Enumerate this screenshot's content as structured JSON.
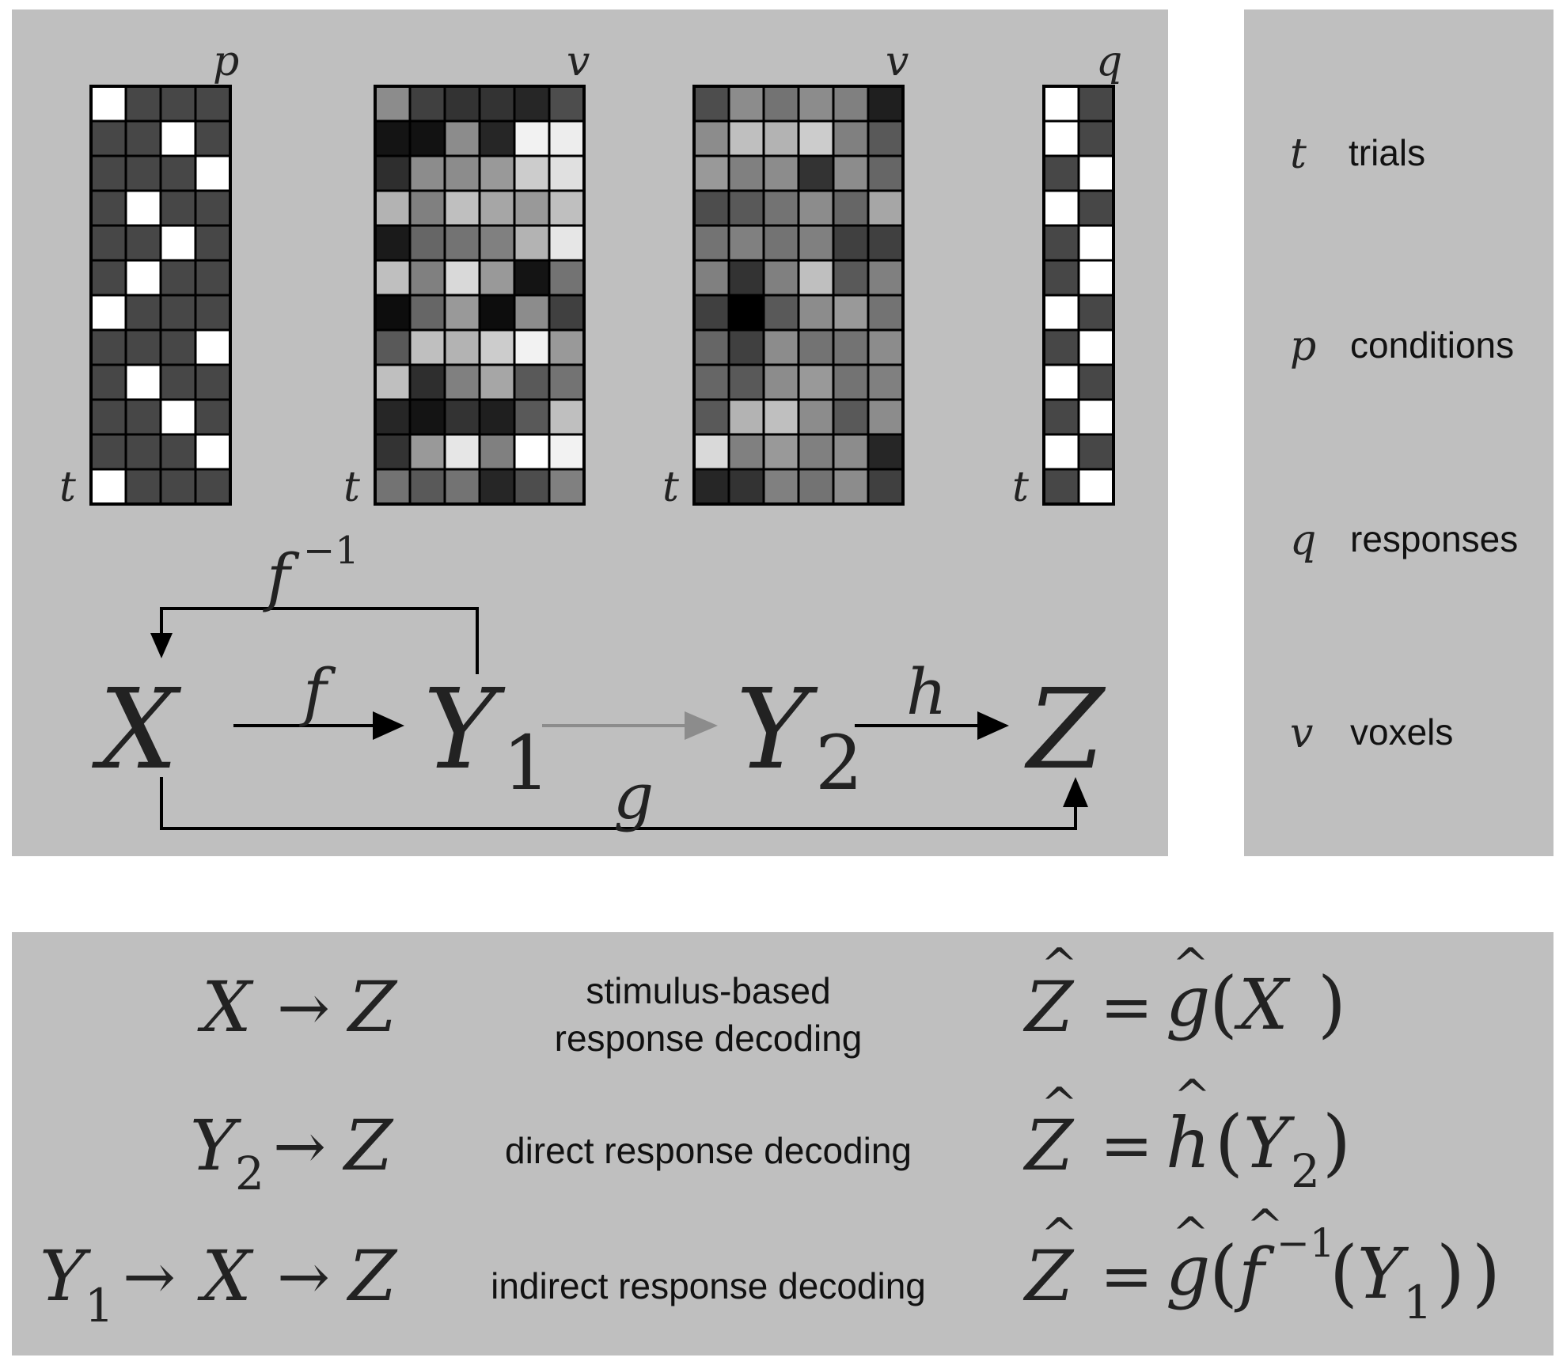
{
  "matrices": [
    {
      "id": "X",
      "dim_label": "p",
      "rows_label": "t",
      "cells": [
        [
          1,
          0.28,
          0.28,
          0.28
        ],
        [
          0.28,
          0.28,
          1,
          0.28
        ],
        [
          0.28,
          0.28,
          0.28,
          1
        ],
        [
          0.28,
          1,
          0.28,
          0.28
        ],
        [
          0.28,
          0.28,
          1,
          0.28
        ],
        [
          0.28,
          1,
          0.28,
          0.28
        ],
        [
          1,
          0.28,
          0.28,
          0.28
        ],
        [
          0.28,
          0.28,
          0.28,
          1
        ],
        [
          0.28,
          1,
          0.28,
          0.28
        ],
        [
          0.28,
          0.28,
          1,
          0.28
        ],
        [
          0.28,
          0.28,
          0.28,
          1
        ],
        [
          1,
          0.28,
          0.28,
          0.28
        ]
      ]
    },
    {
      "id": "Y1",
      "dim_label": "v",
      "rows_label": "t",
      "cells": [
        [
          0.55,
          0.25,
          0.2,
          0.2,
          0.15,
          0.3
        ],
        [
          0.08,
          0.07,
          0.55,
          0.15,
          0.95,
          0.93
        ],
        [
          0.18,
          0.55,
          0.55,
          0.6,
          0.8,
          0.88
        ],
        [
          0.7,
          0.5,
          0.75,
          0.65,
          0.6,
          0.75
        ],
        [
          0.1,
          0.4,
          0.45,
          0.5,
          0.7,
          0.9
        ],
        [
          0.75,
          0.5,
          0.85,
          0.6,
          0.08,
          0.45
        ],
        [
          0.05,
          0.4,
          0.6,
          0.05,
          0.55,
          0.25
        ],
        [
          0.35,
          0.75,
          0.7,
          0.8,
          0.95,
          0.6
        ],
        [
          0.75,
          0.18,
          0.5,
          0.65,
          0.35,
          0.45
        ],
        [
          0.15,
          0.08,
          0.2,
          0.12,
          0.35,
          0.75
        ],
        [
          0.2,
          0.6,
          0.9,
          0.5,
          1,
          0.95
        ],
        [
          0.45,
          0.35,
          0.45,
          0.15,
          0.3,
          0.5
        ]
      ]
    },
    {
      "id": "Y2",
      "dim_label": "v",
      "rows_label": "t",
      "cells": [
        [
          0.3,
          0.55,
          0.45,
          0.55,
          0.5,
          0.12
        ],
        [
          0.55,
          0.75,
          0.7,
          0.8,
          0.5,
          0.35
        ],
        [
          0.6,
          0.5,
          0.55,
          0.2,
          0.55,
          0.4
        ],
        [
          0.3,
          0.35,
          0.45,
          0.55,
          0.4,
          0.65
        ],
        [
          0.45,
          0.5,
          0.45,
          0.5,
          0.25,
          0.25
        ],
        [
          0.5,
          0.2,
          0.5,
          0.75,
          0.35,
          0.5
        ],
        [
          0.25,
          0.0,
          0.35,
          0.55,
          0.6,
          0.45
        ],
        [
          0.4,
          0.25,
          0.55,
          0.45,
          0.45,
          0.55
        ],
        [
          0.4,
          0.35,
          0.55,
          0.6,
          0.45,
          0.5
        ],
        [
          0.35,
          0.7,
          0.75,
          0.55,
          0.35,
          0.55
        ],
        [
          0.85,
          0.5,
          0.6,
          0.5,
          0.55,
          0.15
        ],
        [
          0.15,
          0.2,
          0.5,
          0.45,
          0.55,
          0.25
        ]
      ]
    },
    {
      "id": "Z",
      "dim_label": "q",
      "rows_label": "t",
      "cells": [
        [
          1,
          0.28
        ],
        [
          1,
          0.28
        ],
        [
          0.28,
          1
        ],
        [
          1,
          0.28
        ],
        [
          0.28,
          1
        ],
        [
          0.28,
          1
        ],
        [
          1,
          0.28
        ],
        [
          0.28,
          1
        ],
        [
          1,
          0.28
        ],
        [
          0.28,
          1
        ],
        [
          1,
          0.28
        ],
        [
          0.28,
          1
        ]
      ]
    }
  ],
  "diagram": {
    "nodes": [
      "X",
      "Y",
      "1",
      "Y",
      "2",
      "Z"
    ],
    "edges": [
      "f",
      "h",
      "g",
      "f",
      "−1"
    ]
  },
  "legend": [
    {
      "symbol": "t",
      "text": "trials"
    },
    {
      "symbol": "p",
      "text": "conditions"
    },
    {
      "symbol": "q",
      "text": "responses"
    },
    {
      "symbol": "v",
      "text": "voxels"
    }
  ],
  "methods": [
    {
      "label_line1": "stimulus-based",
      "label_line2": "response decoding"
    },
    {
      "label_line1": "direct response decoding",
      "label_line2": ""
    },
    {
      "label_line1": "indirect response decoding",
      "label_line2": ""
    }
  ],
  "formula_tokens": {
    "arrow": "→",
    "equals": "=",
    "lparen": "(",
    "rparen": ")",
    "X": "X",
    "Y": "Y",
    "Z": "Z",
    "g": "g",
    "h": "h",
    "f": "f",
    "sub1": "1",
    "sub2": "2",
    "inv": "−1",
    "hat": "^"
  },
  "colors": {
    "panel": "#bfbfbf",
    "dark_cell": "#474747",
    "grey_arrow": "#8c8c8c"
  }
}
